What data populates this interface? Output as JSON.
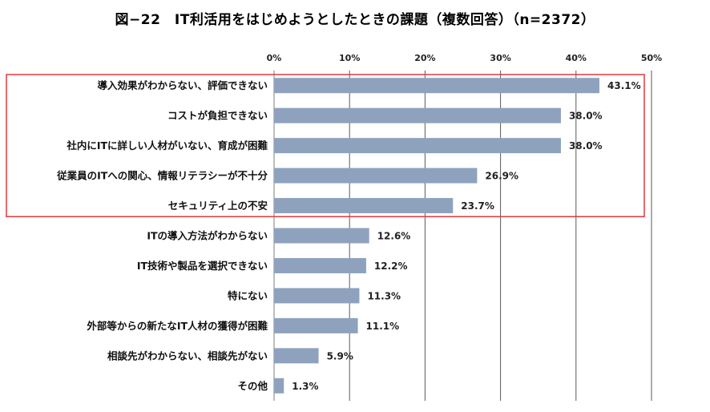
{
  "chart_data": {
    "type": "bar",
    "orientation": "horizontal",
    "title": "図−22　IT利活用をはじめようとしたときの課題（複数回答）（n=2372）",
    "xlim": [
      0,
      50
    ],
    "x_ticks": [
      "0%",
      "10%",
      "20%",
      "30%",
      "40%",
      "50%"
    ],
    "grid": true,
    "bar_color": "#8ea2bd",
    "highlight_box_color": "#e0393e",
    "highlighted_categories": 5,
    "categories": [
      "導入効果がわからない、評価できない",
      "コストが負担できない",
      "社内にITに詳しい人材がいない、育成が困難",
      "従業員のITへの関心、情報リテラシーが不十分",
      "セキュリティ上の不安",
      "ITの導入方法がわからない",
      "IT技術や製品を選択できない",
      "特にない",
      "外部等からの新たなIT人材の獲得が困難",
      "相談先がわからない、相談先がない",
      "その他"
    ],
    "values": [
      43.1,
      38.0,
      38.0,
      26.9,
      23.7,
      12.6,
      12.2,
      11.3,
      11.1,
      5.9,
      1.3
    ],
    "value_labels": [
      "43.1%",
      "38.0%",
      "38.0%",
      "26.9%",
      "23.7%",
      "12.6%",
      "12.2%",
      "11.3%",
      "11.1%",
      "5.9%",
      "1.3%"
    ]
  }
}
